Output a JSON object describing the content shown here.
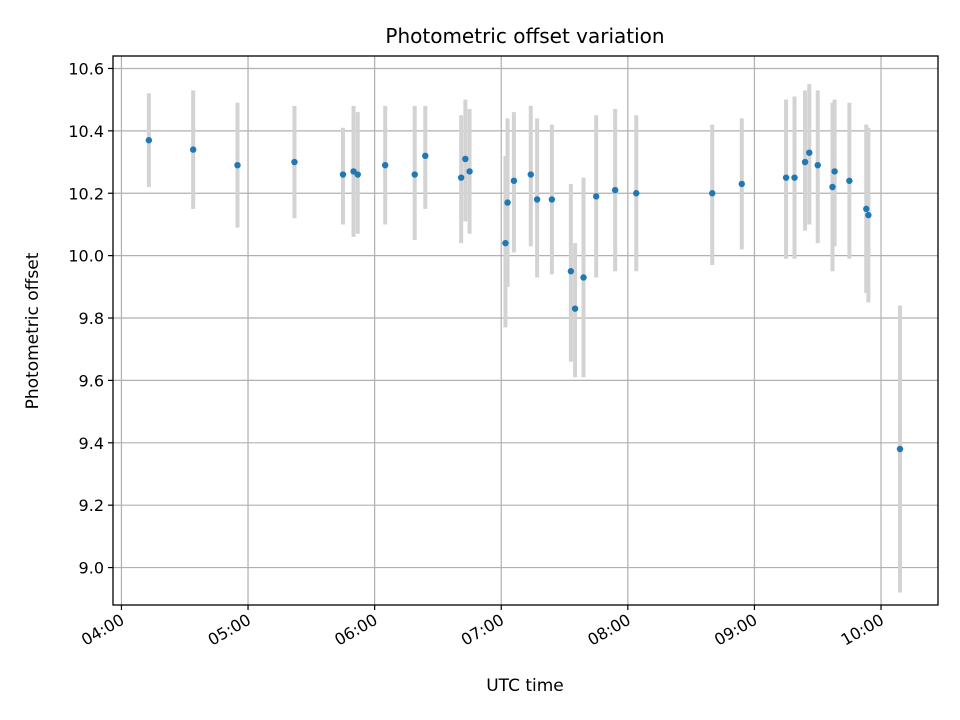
{
  "chart_data": {
    "type": "scatter",
    "title": "Photometric offset variation",
    "xlabel": "UTC time",
    "ylabel": "Photometric offset",
    "xlim": [
      "03:56",
      "10:27"
    ],
    "ylim": [
      8.88,
      10.64
    ],
    "xticks": [
      "04:00",
      "05:00",
      "06:00",
      "07:00",
      "08:00",
      "09:00",
      "10:00"
    ],
    "yticks": [
      "9.0",
      "9.2",
      "9.4",
      "9.6",
      "9.8",
      "10.0",
      "10.2",
      "10.4",
      "10.6"
    ],
    "grid": true,
    "colors": {
      "point": "#1f77b4",
      "error_bar": "#d3d3d3"
    },
    "points": [
      {
        "time": "04:13",
        "y": 10.37,
        "low": 10.22,
        "high": 10.52
      },
      {
        "time": "04:34",
        "y": 10.34,
        "low": 10.15,
        "high": 10.53
      },
      {
        "time": "04:55",
        "y": 10.29,
        "low": 10.09,
        "high": 10.49
      },
      {
        "time": "05:22",
        "y": 10.3,
        "low": 10.12,
        "high": 10.48
      },
      {
        "time": "05:45",
        "y": 10.26,
        "low": 10.1,
        "high": 10.41
      },
      {
        "time": "05:50",
        "y": 10.27,
        "low": 10.06,
        "high": 10.48
      },
      {
        "time": "05:52",
        "y": 10.26,
        "low": 10.07,
        "high": 10.46
      },
      {
        "time": "06:05",
        "y": 10.29,
        "low": 10.1,
        "high": 10.48
      },
      {
        "time": "06:19",
        "y": 10.26,
        "low": 10.05,
        "high": 10.48
      },
      {
        "time": "06:24",
        "y": 10.32,
        "low": 10.15,
        "high": 10.48
      },
      {
        "time": "06:41",
        "y": 10.25,
        "low": 10.04,
        "high": 10.45
      },
      {
        "time": "06:43",
        "y": 10.31,
        "low": 10.11,
        "high": 10.5
      },
      {
        "time": "06:45",
        "y": 10.27,
        "low": 10.07,
        "high": 10.47
      },
      {
        "time": "07:02",
        "y": 10.04,
        "low": 9.77,
        "high": 10.32
      },
      {
        "time": "07:03",
        "y": 10.17,
        "low": 9.9,
        "high": 10.44
      },
      {
        "time": "07:06",
        "y": 10.24,
        "low": 10.01,
        "high": 10.46
      },
      {
        "time": "07:14",
        "y": 10.26,
        "low": 10.03,
        "high": 10.48
      },
      {
        "time": "07:17",
        "y": 10.18,
        "low": 9.93,
        "high": 10.44
      },
      {
        "time": "07:24",
        "y": 10.18,
        "low": 9.94,
        "high": 10.42
      },
      {
        "time": "07:33",
        "y": 9.95,
        "low": 9.66,
        "high": 10.23
      },
      {
        "time": "07:35",
        "y": 9.83,
        "low": 9.61,
        "high": 10.04
      },
      {
        "time": "07:39",
        "y": 9.93,
        "low": 9.61,
        "high": 10.25
      },
      {
        "time": "07:45",
        "y": 10.19,
        "low": 9.93,
        "high": 10.45
      },
      {
        "time": "07:54",
        "y": 10.21,
        "low": 9.95,
        "high": 10.47
      },
      {
        "time": "08:04",
        "y": 10.2,
        "low": 9.95,
        "high": 10.45
      },
      {
        "time": "08:40",
        "y": 10.2,
        "low": 9.97,
        "high": 10.42
      },
      {
        "time": "08:54",
        "y": 10.23,
        "low": 10.02,
        "high": 10.44
      },
      {
        "time": "09:15",
        "y": 10.25,
        "low": 9.99,
        "high": 10.5
      },
      {
        "time": "09:19",
        "y": 10.25,
        "low": 9.99,
        "high": 10.51
      },
      {
        "time": "09:24",
        "y": 10.3,
        "low": 10.08,
        "high": 10.53
      },
      {
        "time": "09:26",
        "y": 10.33,
        "low": 10.1,
        "high": 10.55
      },
      {
        "time": "09:30",
        "y": 10.29,
        "low": 10.04,
        "high": 10.53
      },
      {
        "time": "09:37",
        "y": 10.22,
        "low": 9.95,
        "high": 10.49
      },
      {
        "time": "09:38",
        "y": 10.27,
        "low": 10.03,
        "high": 10.5
      },
      {
        "time": "09:45",
        "y": 10.24,
        "low": 9.99,
        "high": 10.49
      },
      {
        "time": "09:53",
        "y": 10.15,
        "low": 9.88,
        "high": 10.42
      },
      {
        "time": "09:54",
        "y": 10.13,
        "low": 9.85,
        "high": 10.41
      },
      {
        "time": "10:09",
        "y": 9.38,
        "low": 8.92,
        "high": 9.84
      }
    ]
  }
}
